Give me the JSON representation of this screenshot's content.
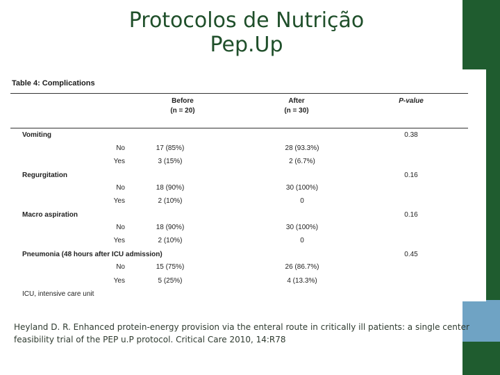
{
  "title": {
    "line1": "Protocolos de Nutrição",
    "line2": "Pep.Up"
  },
  "table": {
    "caption": "Table 4: Complications",
    "headers": {
      "before": "Before",
      "before_n": "(n = 20)",
      "after": "After",
      "after_n": "(n = 30)",
      "pvalue": "P-value"
    },
    "rows": [
      {
        "category": "Vomiting",
        "pvalue": "0.38",
        "sub": [
          {
            "label": "No",
            "before": "17 (85%)",
            "after": "28 (93.3%)"
          },
          {
            "label": "Yes",
            "before": "3 (15%)",
            "after": "2 (6.7%)"
          }
        ]
      },
      {
        "category": "Regurgitation",
        "pvalue": "0.16",
        "sub": [
          {
            "label": "No",
            "before": "18 (90%)",
            "after": "30 (100%)"
          },
          {
            "label": "Yes",
            "before": "2 (10%)",
            "after": "0"
          }
        ]
      },
      {
        "category": "Macro aspiration",
        "pvalue": "0.16",
        "sub": [
          {
            "label": "No",
            "before": "18 (90%)",
            "after": "30 (100%)"
          },
          {
            "label": "Yes",
            "before": "2 (10%)",
            "after": "0"
          }
        ]
      },
      {
        "category": "Pneumonia (48 hours after ICU admission)",
        "pvalue": "0.45",
        "sub": [
          {
            "label": "No",
            "before": "15 (75%)",
            "after": "26 (86.7%)"
          },
          {
            "label": "Yes",
            "before": "5 (25%)",
            "after": "4 (13.3%)"
          }
        ]
      }
    ],
    "footnote": "ICU, intensive care unit"
  },
  "citation": "Heyland D. R. Enhanced protein-energy provision via the enteral route in critically ill patients: a single center feasibility trial of the PEP u.P protocol. Critical Care 2010, 14:R78",
  "colors": {
    "sidebar": "#1f5c2f",
    "accent": "#6fa3c4",
    "title": "#1f4f2a"
  }
}
